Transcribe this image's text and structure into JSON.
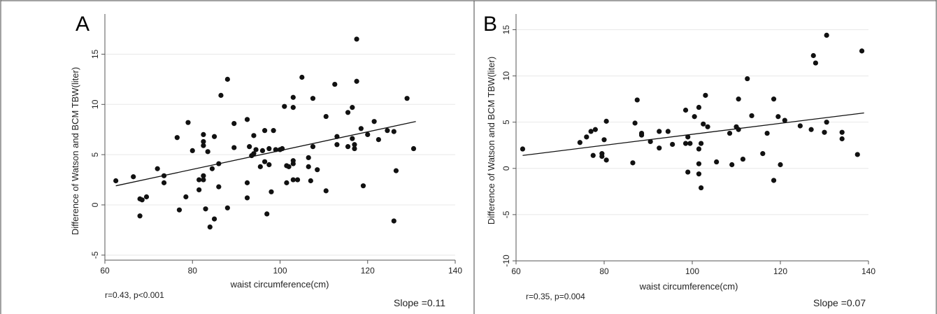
{
  "chart_data": [
    {
      "type": "scatter",
      "panel_label": "A",
      "xlabel": "waist circumference(cm)",
      "ylabel": "Difference of Watson and BCM TBW(liter)",
      "xlim": [
        60,
        140
      ],
      "ylim": [
        -5.5,
        19
      ],
      "x_ticks": [
        60,
        80,
        100,
        120,
        140
      ],
      "y_ticks": [
        -5,
        0,
        5,
        10,
        15
      ],
      "grid": true,
      "stat_text": "r=0.43, p<0.001",
      "slope_text": "Slope =0.11",
      "fit_line": {
        "x": [
          62.5,
          131
        ],
        "y": [
          1.9,
          8.3
        ]
      },
      "points": [
        [
          62.5,
          2.4
        ],
        [
          66.5,
          2.8
        ],
        [
          68,
          0.6
        ],
        [
          68,
          -1.1
        ],
        [
          68.5,
          0.5
        ],
        [
          69.5,
          0.8
        ],
        [
          72,
          3.6
        ],
        [
          73.5,
          2.9
        ],
        [
          73.5,
          2.2
        ],
        [
          76.5,
          6.7
        ],
        [
          77,
          -0.5
        ],
        [
          78.5,
          0.8
        ],
        [
          79,
          8.2
        ],
        [
          80,
          5.4
        ],
        [
          81.5,
          1.5
        ],
        [
          81.5,
          2.5
        ],
        [
          82.5,
          7.0
        ],
        [
          82.5,
          6.3
        ],
        [
          82.5,
          5.9
        ],
        [
          82.5,
          2.9
        ],
        [
          82.5,
          2.5
        ],
        [
          83,
          -0.4
        ],
        [
          83.5,
          5.3
        ],
        [
          84,
          -2.2
        ],
        [
          84.5,
          3.6
        ],
        [
          85,
          -1.4
        ],
        [
          85,
          6.8
        ],
        [
          86,
          1.8
        ],
        [
          86,
          4.1
        ],
        [
          86.5,
          10.9
        ],
        [
          88,
          12.5
        ],
        [
          88,
          -0.3
        ],
        [
          89.5,
          8.1
        ],
        [
          89.5,
          5.7
        ],
        [
          92.5,
          8.5
        ],
        [
          92.5,
          0.7
        ],
        [
          92.5,
          2.2
        ],
        [
          93,
          5.8
        ],
        [
          93.5,
          4.9
        ],
        [
          94,
          5.1
        ],
        [
          94,
          6.9
        ],
        [
          94.5,
          5.5
        ],
        [
          95.5,
          3.8
        ],
        [
          96,
          5.4
        ],
        [
          96.5,
          4.3
        ],
        [
          96.5,
          7.4
        ],
        [
          97,
          -0.9
        ],
        [
          97.5,
          4.0
        ],
        [
          97.5,
          5.6
        ],
        [
          98,
          1.3
        ],
        [
          98.5,
          7.4
        ],
        [
          99,
          5.5
        ],
        [
          100,
          5.5
        ],
        [
          100.5,
          5.6
        ],
        [
          101,
          9.8
        ],
        [
          101.5,
          3.9
        ],
        [
          101.5,
          2.2
        ],
        [
          102,
          3.8
        ],
        [
          103,
          10.7
        ],
        [
          103,
          9.7
        ],
        [
          103,
          4.4
        ],
        [
          103,
          4.1
        ],
        [
          103,
          2.5
        ],
        [
          104,
          2.5
        ],
        [
          105,
          12.7
        ],
        [
          106.5,
          4.7
        ],
        [
          106.5,
          3.8
        ],
        [
          107,
          2.4
        ],
        [
          107.5,
          10.6
        ],
        [
          107.5,
          5.8
        ],
        [
          108.5,
          3.5
        ],
        [
          110.5,
          8.8
        ],
        [
          110.5,
          1.4
        ],
        [
          112.5,
          12.0
        ],
        [
          113,
          6.8
        ],
        [
          113,
          6.0
        ],
        [
          115.5,
          9.2
        ],
        [
          115.5,
          5.8
        ],
        [
          116.5,
          9.7
        ],
        [
          116.5,
          6.6
        ],
        [
          117,
          5.6
        ],
        [
          117,
          6.0
        ],
        [
          117.5,
          12.3
        ],
        [
          117.5,
          16.5
        ],
        [
          118.5,
          7.6
        ],
        [
          119,
          1.9
        ],
        [
          120,
          7.0
        ],
        [
          121.5,
          8.3
        ],
        [
          122.5,
          6.5
        ],
        [
          124.5,
          7.4
        ],
        [
          126,
          7.3
        ],
        [
          126,
          -1.6
        ],
        [
          126.5,
          3.4
        ],
        [
          129,
          10.6
        ],
        [
          130.5,
          5.6
        ]
      ]
    },
    {
      "type": "scatter",
      "panel_label": "B",
      "xlabel": "waist circumference(cm)",
      "ylabel": "Difference of Watson and BCM TBW(liter)",
      "xlim": [
        60,
        140
      ],
      "ylim": [
        -10,
        16.7
      ],
      "x_ticks": [
        60,
        80,
        100,
        120,
        140
      ],
      "y_ticks": [
        -10,
        -5,
        0,
        5,
        10,
        15
      ],
      "grid": true,
      "stat_text": "r=0.35, p=0.004",
      "slope_text": "Slope =0.07",
      "fit_line": {
        "x": [
          61.5,
          139
        ],
        "y": [
          1.4,
          6.0
        ]
      },
      "points": [
        [
          61.5,
          2.1
        ],
        [
          74.5,
          2.8
        ],
        [
          76,
          3.4
        ],
        [
          77,
          4.0
        ],
        [
          77.5,
          1.4
        ],
        [
          78,
          4.2
        ],
        [
          79.5,
          1.6
        ],
        [
          79.5,
          1.3
        ],
        [
          80,
          3.1
        ],
        [
          80.5,
          5.1
        ],
        [
          80.5,
          0.9
        ],
        [
          86.5,
          0.6
        ],
        [
          87,
          4.9
        ],
        [
          87.5,
          7.4
        ],
        [
          88.5,
          3.6
        ],
        [
          88.5,
          3.8
        ],
        [
          90.5,
          2.9
        ],
        [
          92.5,
          4.0
        ],
        [
          92.5,
          2.2
        ],
        [
          94.5,
          4.0
        ],
        [
          95.5,
          2.6
        ],
        [
          98.5,
          2.7
        ],
        [
          98.5,
          6.3
        ],
        [
          99,
          3.4
        ],
        [
          99,
          -0.4
        ],
        [
          99.5,
          2.7
        ],
        [
          100.5,
          5.6
        ],
        [
          101.5,
          0.5
        ],
        [
          101.5,
          -0.6
        ],
        [
          101.5,
          6.6
        ],
        [
          101.5,
          2.1
        ],
        [
          102,
          2.7
        ],
        [
          102,
          -2.1
        ],
        [
          102.5,
          4.8
        ],
        [
          103,
          7.9
        ],
        [
          103.5,
          4.5
        ],
        [
          105.5,
          0.7
        ],
        [
          108.5,
          3.8
        ],
        [
          109,
          0.4
        ],
        [
          110,
          4.5
        ],
        [
          110.5,
          4.2
        ],
        [
          110.5,
          7.5
        ],
        [
          111.5,
          1.0
        ],
        [
          112.5,
          9.7
        ],
        [
          113.5,
          5.7
        ],
        [
          116,
          1.6
        ],
        [
          117,
          3.8
        ],
        [
          118.5,
          7.5
        ],
        [
          118.5,
          -1.3
        ],
        [
          119.5,
          5.6
        ],
        [
          120,
          0.4
        ],
        [
          121,
          5.2
        ],
        [
          124.5,
          4.6
        ],
        [
          127,
          4.2
        ],
        [
          127.5,
          12.2
        ],
        [
          128,
          11.4
        ],
        [
          130,
          3.9
        ],
        [
          130.5,
          14.4
        ],
        [
          130.5,
          5.0
        ],
        [
          134,
          3.9
        ],
        [
          134,
          3.2
        ],
        [
          137.5,
          1.5
        ],
        [
          138.5,
          12.7
        ]
      ]
    }
  ]
}
